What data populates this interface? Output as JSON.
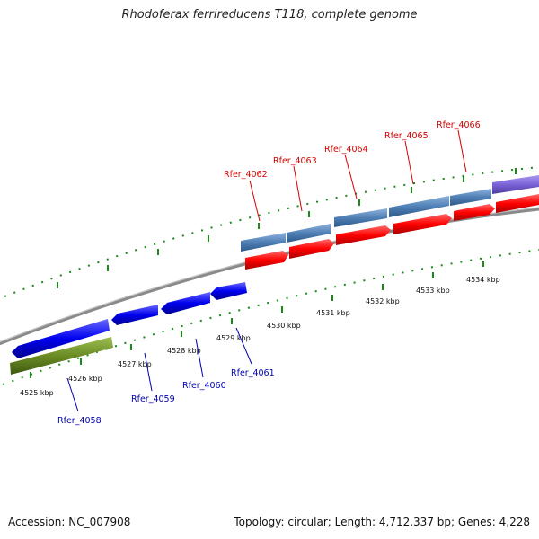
{
  "header": {
    "title": "Rhodoferax ferrireducens T118, complete genome"
  },
  "footer": {
    "accession": "Accession: NC_007908",
    "summary": "Topology: circular; Length: 4,712,337 bp; Genes: 4,228"
  },
  "scale": {
    "unit": "kbp",
    "tick_labels": [
      "4525 kbp",
      "4526 kbp",
      "4527 kbp",
      "4528 kbp",
      "4529 kbp",
      "4530 kbp",
      "4531 kbp",
      "4532 kbp",
      "4533 kbp",
      "4534 kbp"
    ]
  },
  "genes_top": [
    {
      "name": "Rfer_4062"
    },
    {
      "name": "Rfer_4063"
    },
    {
      "name": "Rfer_4064"
    },
    {
      "name": "Rfer_4065"
    },
    {
      "name": "Rfer_4066"
    }
  ],
  "genes_bottom": [
    {
      "name": "Rfer_4058"
    },
    {
      "name": "Rfer_4059"
    },
    {
      "name": "Rfer_4060"
    },
    {
      "name": "Rfer_4061"
    }
  ],
  "colors": {
    "forward_cds": "#ff0000",
    "reverse_cds": "#0000ee",
    "forward_gene_bar": "#4f7fb5",
    "reverse_gene_bar": "#5f7f1a",
    "other_feature": "#7b63d6",
    "backbone": "#888888",
    "tick": "#1a8a1a",
    "label_forward": "#d40000",
    "label_reverse": "#0000b0"
  }
}
